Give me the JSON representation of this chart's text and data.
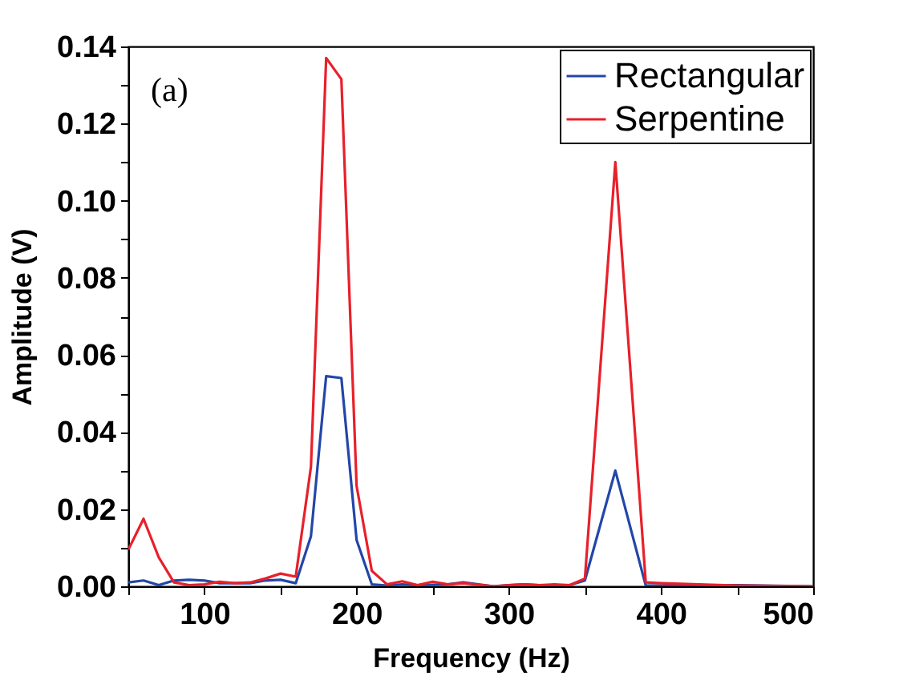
{
  "chart_data": {
    "type": "line",
    "xlabel": "Frequency (Hz)",
    "ylabel": "Amplitude (V)",
    "annotations": [
      "(a)"
    ],
    "xlim": [
      50,
      500
    ],
    "ylim": [
      0,
      0.14
    ],
    "xticks": [
      {
        "value": 50,
        "label": null
      },
      100,
      {
        "value": 150,
        "label": null
      },
      200,
      {
        "value": 250,
        "label": null
      },
      300,
      {
        "value": 350,
        "label": null
      },
      400,
      {
        "value": 450,
        "label": null
      },
      500
    ],
    "yticks": [
      {
        "value": 0,
        "label": "0.00"
      },
      {
        "value": 0.01,
        "label": null
      },
      0.02,
      {
        "value": 0.03,
        "label": null
      },
      0.04,
      {
        "value": 0.05,
        "label": null
      },
      0.06,
      {
        "value": 0.07,
        "label": null
      },
      0.08,
      {
        "value": 0.09,
        "label": null
      },
      {
        "value": 0.1,
        "label": "0.10"
      },
      {
        "value": 0.11,
        "label": null
      },
      0.12,
      {
        "value": 0.13,
        "label": null
      },
      0.14
    ],
    "legend": "top right",
    "grid": false,
    "marker": "none",
    "line_style": "solid",
    "series": [
      {
        "name": "Rectangular",
        "color": "#2346a8",
        "x": [
          50,
          60,
          70,
          80,
          90,
          100,
          110,
          120,
          130,
          140,
          150,
          160,
          170,
          180,
          190,
          200,
          210,
          220,
          230,
          240,
          250,
          260,
          270,
          280,
          290,
          300,
          310,
          320,
          330,
          340,
          350,
          370,
          390,
          450,
          500
        ],
        "values": [
          0.001,
          0.0015,
          0.0003,
          0.0015,
          0.0017,
          0.0015,
          0.0008,
          0.0008,
          0.0008,
          0.0015,
          0.0017,
          0.0008,
          0.013,
          0.0545,
          0.054,
          0.012,
          0.0005,
          0.0002,
          0.0005,
          0.0003,
          0.0004,
          0.0005,
          0.001,
          0.0005,
          0,
          0.0003,
          0.0005,
          0.0003,
          0.0003,
          0.0003,
          0.0015,
          0.03,
          0.0002,
          0.0003,
          0
        ]
      },
      {
        "name": "Serpentine",
        "color": "#e8202a",
        "x": [
          50,
          60,
          70,
          80,
          90,
          100,
          110,
          120,
          130,
          140,
          150,
          160,
          170,
          180,
          190,
          200,
          210,
          220,
          230,
          240,
          250,
          260,
          270,
          280,
          290,
          300,
          310,
          320,
          330,
          340,
          350,
          370,
          390,
          400,
          450,
          500
        ],
        "values": [
          0.0095,
          0.0175,
          0.0075,
          0.001,
          0.0003,
          0.0005,
          0.0012,
          0.0008,
          0.001,
          0.002,
          0.0033,
          0.0025,
          0.031,
          0.137,
          0.1315,
          0.026,
          0.004,
          0.0005,
          0.0013,
          0.0003,
          0.0012,
          0.0005,
          0.0008,
          0.0004,
          0,
          0.0003,
          0.0005,
          0.0003,
          0.0005,
          0.0003,
          0.002,
          0.11,
          0.001,
          0.0008,
          0.0002,
          0
        ]
      }
    ]
  }
}
